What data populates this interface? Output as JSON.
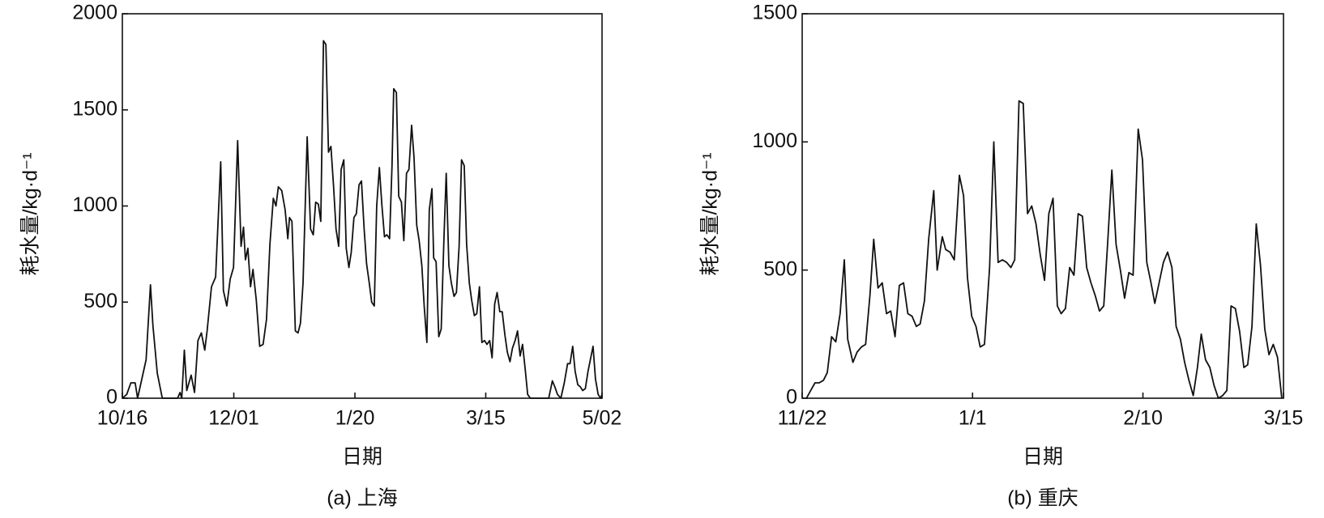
{
  "chart_data": [
    {
      "type": "line",
      "caption": "(a) 上海",
      "xlabel": "日期",
      "ylabel": "耗水量/kg·d⁻¹",
      "x": [
        0,
        1.8,
        3.5,
        5.3,
        6.3,
        9.8,
        11.6,
        12.6,
        14.4,
        16.5,
        22.8,
        23.8,
        24.5,
        25.6,
        26.6,
        28.4,
        29.8,
        31.2,
        32.6,
        34,
        35,
        36.8,
        38.5,
        40.6,
        41.7,
        43.1,
        44.5,
        45.9,
        47.6,
        49,
        50,
        50.8,
        51.8,
        52.9,
        53.9,
        55.3,
        56.7,
        58.1,
        59.5,
        60.9,
        62.3,
        63.4,
        64.4,
        65.8,
        67.2,
        68.3,
        69,
        70,
        71.4,
        72.5,
        73.5,
        74.6,
        76.3,
        77.7,
        78.8,
        79.8,
        80.9,
        81.9,
        83,
        84,
        85.1,
        86.1,
        87.2,
        88.2,
        89.3,
        90.3,
        91.4,
        92.4,
        93.5,
        94.5,
        95.6,
        96.6,
        97.7,
        98.7,
        99.8,
        100.8,
        101.9,
        102.9,
        104,
        105,
        106.1,
        107.1,
        108.2,
        109.2,
        110.3,
        111.3,
        112,
        113.1,
        114.1,
        115.2,
        116.2,
        117.3,
        118.3,
        119.4,
        120.4,
        121.5,
        122.5,
        123.6,
        124.6,
        125.7,
        126.7,
        127.8,
        128.5,
        129.5,
        130.6,
        131.6,
        132.7,
        133.7,
        134.8,
        135.8,
        136.9,
        137.9,
        139,
        140,
        141.1,
        142.1,
        143.2,
        144.2,
        145.3,
        146.3,
        147.4,
        148.4,
        149.5,
        150.5,
        151.6,
        152.6,
        153.7,
        154.7,
        155.8,
        156.8,
        157.9,
        158.9,
        160,
        161,
        162.1,
        163.1,
        164.2,
        165.2,
        166.3,
        167.3,
        168.4,
        176,
        177.5,
        178.5,
        179.6,
        181,
        182.4,
        183.8,
        184.8,
        185.9,
        186.9,
        188,
        189,
        190,
        191.1,
        192.2,
        194.3,
        195.3,
        196.4,
        197.4,
        198
      ],
      "series": [
        {
          "name": "上海",
          "color": "#111111",
          "values": [
            0,
            20,
            80,
            80,
            0,
            200,
            590,
            380,
            130,
            0,
            0,
            30,
            0,
            250,
            40,
            120,
            30,
            300,
            340,
            250,
            350,
            580,
            630,
            1230,
            560,
            480,
            620,
            680,
            1340,
            790,
            890,
            720,
            780,
            580,
            670,
            510,
            270,
            280,
            410,
            800,
            1040,
            1000,
            1100,
            1080,
            980,
            830,
            940,
            920,
            350,
            340,
            390,
            600,
            1360,
            880,
            850,
            1020,
            1010,
            920,
            1860,
            1840,
            1280,
            1310,
            1100,
            880,
            790,
            1190,
            1240,
            780,
            680,
            760,
            940,
            960,
            1110,
            1130,
            880,
            700,
            600,
            500,
            480,
            1000,
            1200,
            1010,
            840,
            850,
            830,
            1210,
            1610,
            1590,
            1050,
            1020,
            820,
            1170,
            1190,
            1420,
            1250,
            900,
            820,
            690,
            480,
            290,
            980,
            1090,
            730,
            710,
            320,
            360,
            820,
            1170,
            690,
            600,
            530,
            550,
            790,
            1240,
            1210,
            800,
            600,
            510,
            430,
            440,
            580,
            290,
            300,
            280,
            300,
            210,
            490,
            550,
            450,
            450,
            330,
            240,
            190,
            260,
            300,
            350,
            220,
            280,
            150,
            20,
            0,
            0,
            90,
            60,
            20,
            0,
            80,
            180,
            180,
            270,
            140,
            70,
            60,
            40,
            50,
            140,
            270,
            100,
            20,
            0,
            20
          ]
        }
      ],
      "xlim": [
        0,
        198
      ],
      "xticks": [
        {
          "value": 0,
          "label": "10/16"
        },
        {
          "value": 46,
          "label": "12/01"
        },
        {
          "value": 96,
          "label": "1/20"
        },
        {
          "value": 150,
          "label": "3/15"
        },
        {
          "value": 198,
          "label": "5/02"
        }
      ],
      "ylim": [
        0,
        2000
      ],
      "yticks": [
        0,
        500,
        1000,
        1500,
        2000
      ]
    },
    {
      "type": "line",
      "caption": "(b) 重庆",
      "xlabel": "日期",
      "ylabel": "耗水量/kg·d⁻¹",
      "x": [
        1.0,
        2.0,
        3.0,
        4.0,
        5.0,
        5.9,
        6.9,
        7.9,
        8.9,
        9.9,
        10.7,
        11.9,
        12.9,
        13.9,
        14.9,
        15.9,
        16.8,
        17.8,
        18.8,
        19.8,
        20.8,
        21.8,
        22.8,
        23.8,
        24.8,
        25.8,
        26.8,
        27.7,
        28.7,
        29.7,
        30.9,
        31.7,
        32.9,
        33.7,
        34.7,
        35.7,
        36.9,
        37.9,
        38.8,
        39.8,
        40.8,
        41.8,
        42.8,
        44.0,
        45.0,
        46.0,
        47.0,
        48.0,
        49.0,
        49.9,
        50.9,
        51.9,
        52.9,
        53.9,
        54.9,
        55.9,
        56.9,
        57.9,
        58.9,
        59.9,
        60.8,
        61.8,
        62.8,
        63.8,
        64.8,
        65.8,
        66.8,
        67.8,
        68.8,
        69.8,
        70.8,
        71.7,
        72.7,
        73.7,
        74.7,
        75.7,
        76.7,
        77.7,
        78.9,
        79.9,
        80.9,
        81.9,
        82.8,
        83.8,
        84.8,
        85.8,
        86.8,
        87.8,
        88.8,
        89.8,
        90.8,
        91.8,
        92.8,
        93.7,
        94.7,
        95.7,
        96.7,
        97.7,
        98.7,
        99.7,
        100.7,
        101.7,
        102.7,
        103.7,
        104.6,
        105.6,
        106.6,
        107.6,
        108.6,
        109.6,
        110.6,
        111.6,
        112.6
      ],
      "series": [
        {
          "name": "重庆",
          "color": "#111111",
          "values": [
            0,
            30,
            60,
            60,
            70,
            100,
            240,
            220,
            330,
            540,
            230,
            140,
            180,
            200,
            210,
            400,
            620,
            430,
            450,
            330,
            340,
            240,
            440,
            450,
            330,
            320,
            280,
            290,
            380,
            620,
            810,
            500,
            630,
            580,
            570,
            540,
            870,
            790,
            470,
            320,
            280,
            200,
            210,
            510,
            1000,
            530,
            540,
            530,
            510,
            540,
            1160,
            1150,
            720,
            750,
            680,
            560,
            460,
            720,
            780,
            360,
            330,
            350,
            510,
            480,
            720,
            710,
            510,
            450,
            400,
            340,
            360,
            600,
            890,
            600,
            500,
            390,
            490,
            480,
            1050,
            930,
            530,
            450,
            370,
            450,
            530,
            570,
            510,
            280,
            230,
            140,
            70,
            10,
            120,
            250,
            150,
            120,
            50,
            0,
            10,
            30,
            360,
            350,
            260,
            120,
            130,
            280,
            680,
            520,
            270,
            170,
            210,
            160,
            0
          ]
        }
      ],
      "xlim": [
        0,
        113
      ],
      "xticks": [
        {
          "value": 0,
          "label": "11/22"
        },
        {
          "value": 40,
          "label": "1/1"
        },
        {
          "value": 80,
          "label": "2/10"
        },
        {
          "value": 113,
          "label": "3/15"
        }
      ],
      "ylim": [
        0,
        1500
      ],
      "yticks": [
        0,
        500,
        1000,
        1500
      ]
    }
  ]
}
